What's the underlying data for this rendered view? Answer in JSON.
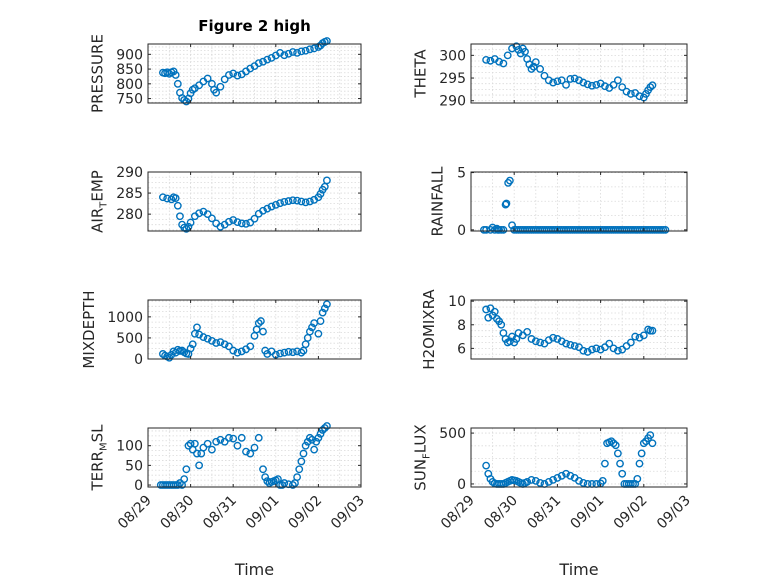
{
  "chart_data": [
    {
      "type": "scatter",
      "title": "Figure 2 high",
      "ylabel": "PRESSURE",
      "ylim": [
        735,
        935
      ],
      "yticks": [
        750,
        800,
        850,
        900
      ],
      "yticklabels": [
        "750",
        "800",
        "850",
        "900"
      ],
      "series": [
        {
          "x": [
            0.35,
            0.4,
            0.45,
            0.5,
            0.55,
            0.6,
            0.65,
            0.7,
            0.75,
            0.8,
            0.85,
            0.9,
            0.95,
            1.0,
            1.05,
            1.1,
            1.2,
            1.3,
            1.4,
            1.5,
            1.55,
            1.6,
            1.7,
            1.8,
            1.9,
            2.0,
            2.1,
            2.2,
            2.3,
            2.4,
            2.5,
            2.6,
            2.7,
            2.8,
            2.9,
            3.0,
            3.1,
            3.2,
            3.3,
            3.4,
            3.5,
            3.6,
            3.7,
            3.8,
            3.9,
            4.0,
            4.05,
            4.1,
            4.15,
            4.2
          ],
          "y": [
            838,
            836,
            839,
            834,
            839,
            842,
            830,
            800,
            770,
            752,
            745,
            740,
            750,
            768,
            780,
            785,
            795,
            808,
            818,
            800,
            780,
            770,
            790,
            815,
            830,
            835,
            828,
            832,
            842,
            852,
            860,
            870,
            875,
            882,
            888,
            896,
            905,
            897,
            902,
            908,
            905,
            910,
            912,
            917,
            920,
            925,
            930,
            938,
            942,
            945
          ]
        }
      ]
    },
    {
      "type": "scatter",
      "ylabel": "THETA",
      "ylim": [
        289.5,
        302.5
      ],
      "yticks": [
        290,
        295,
        300
      ],
      "yticklabels": [
        "290",
        "295",
        "300"
      ],
      "series": [
        {
          "x": [
            0.35,
            0.45,
            0.55,
            0.65,
            0.75,
            0.85,
            0.95,
            1.05,
            1.1,
            1.15,
            1.2,
            1.25,
            1.3,
            1.35,
            1.4,
            1.45,
            1.5,
            1.6,
            1.7,
            1.8,
            1.9,
            2.0,
            2.1,
            2.2,
            2.3,
            2.4,
            2.5,
            2.6,
            2.7,
            2.8,
            2.9,
            3.0,
            3.1,
            3.2,
            3.3,
            3.4,
            3.5,
            3.6,
            3.7,
            3.8,
            3.9,
            4.0,
            4.05,
            4.1,
            4.15,
            4.2
          ],
          "y": [
            299,
            298.8,
            299.2,
            298.6,
            298.2,
            300,
            301.5,
            302,
            301.2,
            300.4,
            301.5,
            300.8,
            299.2,
            298,
            297,
            297.5,
            298.5,
            297,
            295.5,
            294.5,
            294,
            294.3,
            294.5,
            293.5,
            294.8,
            294.9,
            294.5,
            294,
            293.6,
            293.3,
            293.5,
            293.8,
            293.2,
            292.8,
            293.5,
            294.5,
            293,
            292,
            291.5,
            291.7,
            291,
            290.7,
            291.5,
            292.3,
            293,
            293.4
          ]
        }
      ]
    },
    {
      "type": "scatter",
      "ylabel": "AIR_TEMP",
      "ylim": [
        276,
        290
      ],
      "yticks": [
        280,
        285,
        290
      ],
      "yticklabels": [
        "280",
        "285",
        "290"
      ],
      "series": [
        {
          "x": [
            0.35,
            0.45,
            0.55,
            0.6,
            0.65,
            0.7,
            0.75,
            0.8,
            0.85,
            0.9,
            0.95,
            1.0,
            1.1,
            1.2,
            1.3,
            1.4,
            1.5,
            1.6,
            1.7,
            1.8,
            1.9,
            2.0,
            2.1,
            2.2,
            2.3,
            2.4,
            2.5,
            2.6,
            2.7,
            2.8,
            2.9,
            3.0,
            3.1,
            3.2,
            3.3,
            3.4,
            3.5,
            3.6,
            3.7,
            3.8,
            3.9,
            4.0,
            4.05,
            4.1,
            4.15,
            4.2
          ],
          "y": [
            284,
            283.7,
            283.5,
            284,
            283.8,
            282,
            279.5,
            277.5,
            276.8,
            276.5,
            277,
            278,
            279.5,
            280.2,
            280.6,
            280,
            279,
            277.8,
            277,
            277.5,
            278.2,
            278.6,
            278.1,
            277.8,
            277.7,
            278,
            278.9,
            280.1,
            280.8,
            281.3,
            281.8,
            282.2,
            282.6,
            282.9,
            283.1,
            283.3,
            283.2,
            283,
            282.8,
            283,
            283.4,
            284,
            284.8,
            285.8,
            286.5,
            288
          ]
        }
      ]
    },
    {
      "type": "scatter",
      "ylabel": "RAINFALL",
      "ylim": [
        -0.1,
        5.05
      ],
      "yticks": [
        0,
        5
      ],
      "yticklabels": [
        "0",
        "5"
      ],
      "series": [
        {
          "x": [
            0.3,
            0.35,
            0.45,
            0.5,
            0.55,
            0.6,
            0.62,
            0.65,
            0.7,
            0.75,
            0.8,
            0.82,
            0.86,
            0.9,
            0.95,
            1.0,
            1.05,
            1.1,
            1.15,
            1.2,
            1.25,
            1.3,
            1.35,
            1.4,
            1.45,
            1.5,
            1.55,
            1.6,
            1.65,
            1.7,
            1.75,
            1.8,
            1.85,
            1.9,
            1.95,
            2.0,
            2.05,
            2.1,
            2.15,
            2.2,
            2.25,
            2.3,
            2.35,
            2.4,
            2.45,
            2.5,
            2.55,
            2.6,
            2.65,
            2.7,
            2.75,
            2.8,
            2.85,
            2.9,
            2.95,
            3.0,
            3.05,
            3.1,
            3.15,
            3.2,
            3.25,
            3.3,
            3.35,
            3.4,
            3.45,
            3.5,
            3.55,
            3.6,
            3.65,
            3.7,
            3.75,
            3.8,
            3.85,
            3.9,
            3.95,
            4.0,
            4.05,
            4.1,
            4.15,
            4.2,
            4.25,
            4.3,
            4.35,
            4.4,
            4.45,
            4.5
          ],
          "y": [
            0,
            0,
            0,
            0.2,
            0,
            0.1,
            0,
            0,
            0,
            0,
            2.2,
            2.3,
            4.1,
            4.3,
            0.4,
            0,
            0,
            0,
            0,
            0,
            0,
            0,
            0,
            0,
            0,
            0,
            0,
            0,
            0,
            0,
            0,
            0,
            0,
            0,
            0,
            0,
            0,
            0,
            0,
            0,
            0,
            0,
            0,
            0,
            0,
            0,
            0,
            0,
            0,
            0,
            0,
            0,
            0,
            0,
            0,
            0,
            0,
            0,
            0,
            0,
            0,
            0,
            0,
            0,
            0,
            0,
            0,
            0,
            0,
            0,
            0,
            0,
            0,
            0,
            0,
            0,
            0,
            0,
            0,
            0,
            0,
            0,
            0,
            0,
            0,
            0
          ]
        }
      ]
    },
    {
      "type": "scatter",
      "ylabel": "MIXDEPTH",
      "ylim": [
        0,
        1400
      ],
      "yticks": [
        0,
        500,
        1000
      ],
      "yticklabels": [
        "0",
        "500",
        "1000"
      ],
      "series": [
        {
          "x": [
            0.35,
            0.4,
            0.45,
            0.5,
            0.55,
            0.6,
            0.65,
            0.7,
            0.75,
            0.8,
            0.85,
            0.9,
            0.95,
            1.0,
            1.05,
            1.1,
            1.15,
            1.2,
            1.3,
            1.4,
            1.5,
            1.6,
            1.7,
            1.8,
            1.9,
            2.0,
            2.1,
            2.2,
            2.3,
            2.4,
            2.5,
            2.55,
            2.6,
            2.65,
            2.7,
            2.75,
            2.8,
            2.9,
            3.0,
            3.1,
            3.2,
            3.3,
            3.4,
            3.5,
            3.6,
            3.65,
            3.7,
            3.75,
            3.8,
            3.85,
            3.9,
            4.0,
            4.05,
            4.1,
            4.15,
            4.2
          ],
          "y": [
            120,
            80,
            60,
            30,
            100,
            180,
            150,
            220,
            190,
            200,
            160,
            130,
            120,
            250,
            350,
            600,
            750,
            580,
            520,
            480,
            430,
            380,
            400,
            350,
            300,
            200,
            150,
            180,
            230,
            300,
            550,
            700,
            850,
            900,
            650,
            200,
            120,
            180,
            100,
            130,
            150,
            170,
            160,
            180,
            150,
            200,
            350,
            500,
            650,
            750,
            850,
            600,
            900,
            1100,
            1200,
            1300
          ]
        }
      ]
    },
    {
      "type": "scatter",
      "ylabel": "H2OMIXRA",
      "ylim": [
        5.1,
        10.1
      ],
      "yticks": [
        6,
        8,
        10
      ],
      "yticklabels": [
        "6",
        "8",
        "10"
      ],
      "series": [
        {
          "x": [
            0.35,
            0.4,
            0.45,
            0.5,
            0.55,
            0.6,
            0.65,
            0.7,
            0.75,
            0.8,
            0.85,
            0.9,
            0.95,
            1.0,
            1.05,
            1.1,
            1.2,
            1.3,
            1.4,
            1.5,
            1.6,
            1.7,
            1.8,
            1.9,
            2.0,
            2.1,
            2.2,
            2.3,
            2.4,
            2.5,
            2.6,
            2.7,
            2.8,
            2.9,
            3.0,
            3.1,
            3.2,
            3.3,
            3.4,
            3.5,
            3.6,
            3.7,
            3.8,
            3.9,
            4.0,
            4.1,
            4.15,
            4.2
          ],
          "y": [
            9.3,
            8.6,
            9.4,
            8.8,
            9.1,
            8.5,
            8.3,
            8,
            7.3,
            6.8,
            6.5,
            6.6,
            7,
            6.5,
            6.8,
            7.3,
            7.1,
            7.4,
            6.8,
            6.6,
            6.5,
            6.4,
            6.7,
            6.9,
            6.8,
            6.6,
            6.4,
            6.3,
            6.2,
            6.1,
            5.8,
            5.7,
            5.9,
            6,
            5.9,
            6.1,
            6.4,
            6,
            5.8,
            5.9,
            6.2,
            6.5,
            7,
            6.9,
            7.1,
            7.6,
            7.5,
            7.5
          ]
        }
      ]
    },
    {
      "type": "scatter",
      "ylabel": "TERR_MSL",
      "xlabel": "Time",
      "ylim": [
        -5,
        145
      ],
      "yticks": [
        0,
        50,
        100
      ],
      "yticklabels": [
        "0",
        "50",
        "100"
      ],
      "xlim": [
        0,
        5
      ],
      "xticks": [
        0,
        1,
        2,
        3,
        4,
        5
      ],
      "xticklabels": [
        "08/29",
        "08/30",
        "08/31",
        "09/01",
        "09/02",
        "09/03"
      ],
      "series": [
        {
          "x": [
            0.3,
            0.35,
            0.4,
            0.45,
            0.5,
            0.55,
            0.6,
            0.65,
            0.7,
            0.75,
            0.8,
            0.85,
            0.9,
            0.95,
            1.0,
            1.05,
            1.1,
            1.15,
            1.2,
            1.25,
            1.3,
            1.4,
            1.5,
            1.6,
            1.7,
            1.8,
            1.9,
            2.0,
            2.1,
            2.2,
            2.3,
            2.4,
            2.5,
            2.6,
            2.7,
            2.75,
            2.8,
            2.85,
            2.9,
            2.95,
            3.0,
            3.05,
            3.1,
            3.15,
            3.2,
            3.3,
            3.4,
            3.45,
            3.5,
            3.55,
            3.6,
            3.65,
            3.7,
            3.75,
            3.8,
            3.85,
            3.9,
            3.95,
            4.0,
            4.05,
            4.1,
            4.15,
            4.2
          ],
          "y": [
            0,
            0,
            0,
            0,
            0,
            0,
            0,
            0,
            0,
            5,
            0,
            15,
            40,
            100,
            105,
            90,
            105,
            80,
            50,
            80,
            95,
            105,
            90,
            110,
            115,
            110,
            120,
            118,
            100,
            120,
            85,
            80,
            95,
            120,
            40,
            20,
            10,
            5,
            8,
            10,
            12,
            15,
            0,
            0,
            5,
            2,
            0,
            5,
            20,
            40,
            60,
            80,
            100,
            110,
            120,
            115,
            90,
            110,
            120,
            130,
            140,
            145,
            150
          ]
        }
      ]
    },
    {
      "type": "scatter",
      "ylabel": "SUN_FLUX",
      "xlabel": "Time",
      "ylim": [
        -30,
        550
      ],
      "yticks": [
        0,
        500
      ],
      "yticklabels": [
        "0",
        "500"
      ],
      "xlim": [
        0,
        5
      ],
      "xticks": [
        0,
        1,
        2,
        3,
        4,
        5
      ],
      "xticklabels": [
        "08/29",
        "08/30",
        "08/31",
        "09/01",
        "09/02",
        "09/03"
      ],
      "series": [
        {
          "x": [
            0.35,
            0.4,
            0.45,
            0.5,
            0.55,
            0.6,
            0.65,
            0.7,
            0.75,
            0.8,
            0.85,
            0.9,
            0.95,
            1.0,
            1.05,
            1.1,
            1.15,
            1.2,
            1.25,
            1.3,
            1.4,
            1.5,
            1.6,
            1.7,
            1.8,
            1.9,
            2.0,
            2.1,
            2.2,
            2.3,
            2.4,
            2.5,
            2.6,
            2.7,
            2.8,
            2.9,
            3.0,
            3.05,
            3.1,
            3.15,
            3.2,
            3.25,
            3.3,
            3.35,
            3.4,
            3.45,
            3.5,
            3.55,
            3.6,
            3.65,
            3.7,
            3.75,
            3.8,
            3.85,
            3.9,
            3.95,
            4.0,
            4.05,
            4.1,
            4.15,
            4.2
          ],
          "y": [
            180,
            100,
            50,
            20,
            5,
            0,
            0,
            0,
            0,
            10,
            20,
            30,
            40,
            35,
            30,
            20,
            10,
            0,
            10,
            20,
            40,
            30,
            10,
            0,
            20,
            40,
            60,
            80,
            100,
            80,
            60,
            30,
            10,
            0,
            0,
            0,
            5,
            30,
            200,
            400,
            410,
            420,
            400,
            380,
            300,
            200,
            100,
            0,
            0,
            0,
            0,
            0,
            0,
            50,
            200,
            300,
            400,
            420,
            450,
            480,
            400
          ]
        }
      ]
    }
  ]
}
